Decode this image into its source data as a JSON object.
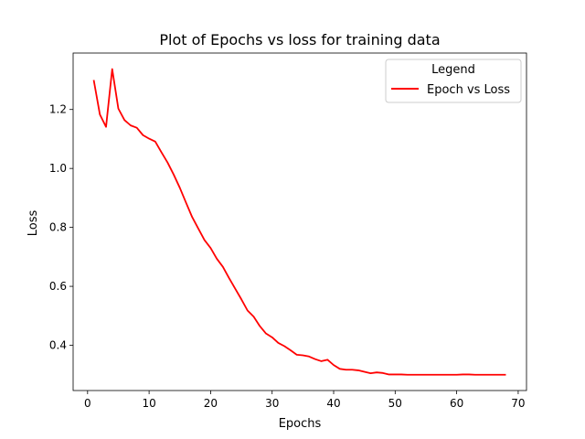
{
  "chart_data": {
    "type": "line",
    "title": "Plot of Epochs vs loss for training data",
    "xlabel": "Epochs",
    "ylabel": "Loss",
    "xlim": [
      -2.35,
      71.35
    ],
    "ylim": [
      0.2465,
      1.3915
    ],
    "xticks": [
      0,
      10,
      20,
      30,
      40,
      50,
      60,
      70
    ],
    "yticks": [
      0.4,
      0.6,
      0.8,
      1.0,
      1.2
    ],
    "ytick_labels": [
      "0.4",
      "0.6",
      "0.8",
      "1.0",
      "1.2"
    ],
    "grid": false,
    "legend": {
      "title": "Legend",
      "position": "upper right"
    },
    "series": [
      {
        "name": "Epoch vs Loss",
        "color": "#ff0000",
        "x": [
          1,
          2,
          3,
          4,
          5,
          6,
          7,
          8,
          9,
          10,
          11,
          12,
          13,
          14,
          15,
          16,
          17,
          18,
          19,
          20,
          21,
          22,
          23,
          24,
          25,
          26,
          27,
          28,
          29,
          30,
          31,
          32,
          33,
          34,
          35,
          36,
          37,
          38,
          39,
          40,
          41,
          42,
          43,
          44,
          45,
          46,
          47,
          48,
          49,
          50,
          51,
          52,
          53,
          54,
          55,
          56,
          57,
          58,
          59,
          60,
          61,
          62,
          63,
          64,
          65,
          66,
          67,
          68
        ],
        "y": [
          1.3,
          1.183,
          1.141,
          1.337,
          1.203,
          1.164,
          1.146,
          1.138,
          1.113,
          1.101,
          1.091,
          1.055,
          1.02,
          0.979,
          0.934,
          0.884,
          0.835,
          0.796,
          0.757,
          0.73,
          0.694,
          0.666,
          0.628,
          0.592,
          0.556,
          0.518,
          0.497,
          0.465,
          0.44,
          0.427,
          0.408,
          0.397,
          0.383,
          0.368,
          0.366,
          0.362,
          0.353,
          0.346,
          0.351,
          0.333,
          0.32,
          0.317,
          0.317,
          0.315,
          0.31,
          0.305,
          0.308,
          0.306,
          0.301,
          0.301,
          0.301,
          0.3,
          0.3,
          0.3,
          0.3,
          0.3,
          0.3,
          0.3,
          0.3,
          0.3,
          0.301,
          0.301,
          0.3,
          0.3,
          0.3,
          0.3,
          0.3,
          0.3
        ]
      }
    ]
  }
}
